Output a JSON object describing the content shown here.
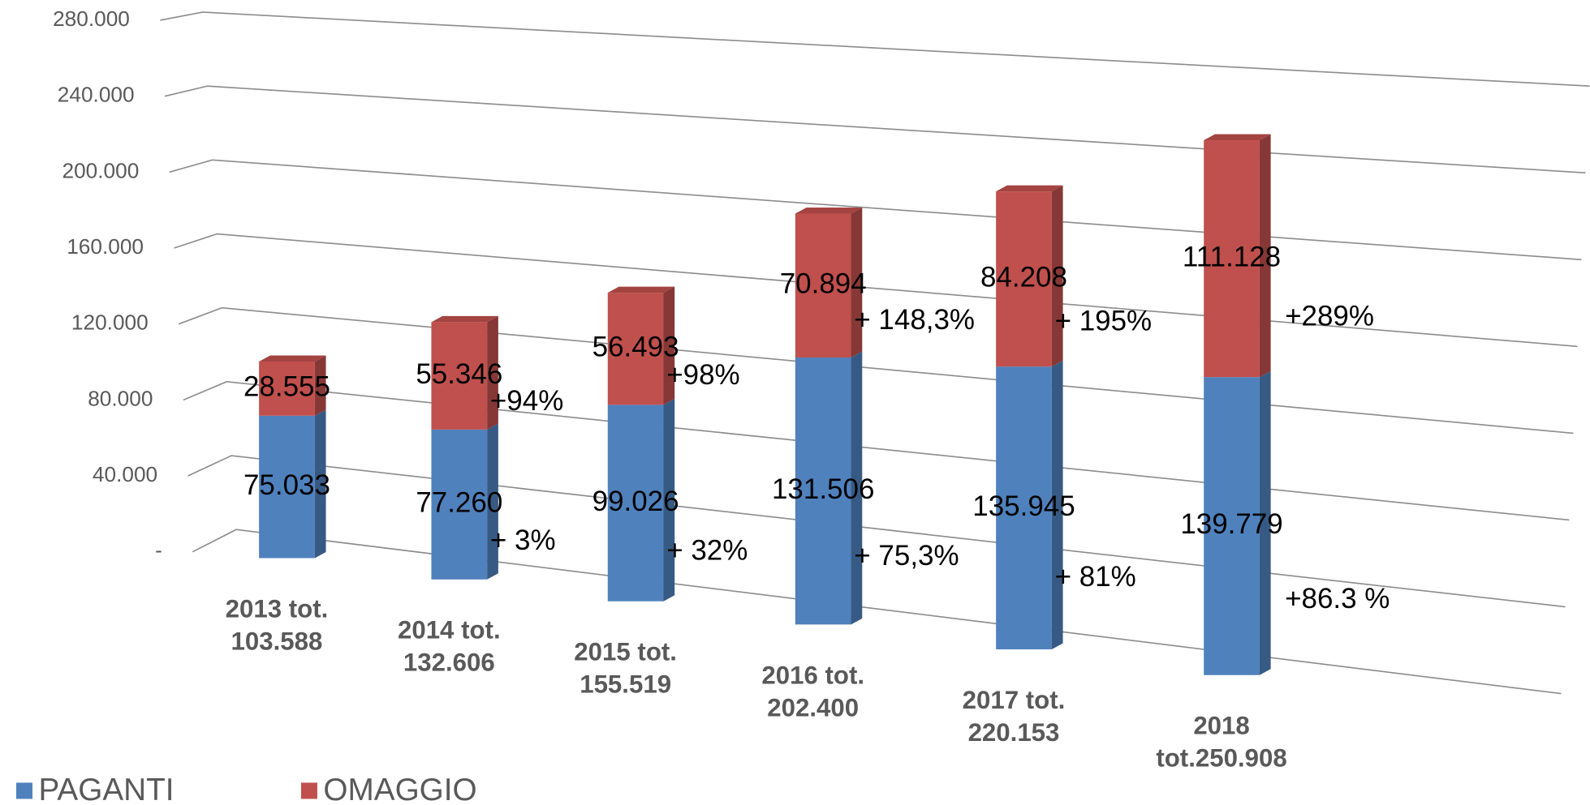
{
  "chart_data": {
    "type": "bar3d_stacked",
    "categories": [
      "2013 tot.\n103.588",
      "2014 tot.\n132.606",
      "2015 tot.\n155.519",
      "2016 tot.\n202.400",
      "2017 tot.\n220.153",
      "2018\ntot.250.908"
    ],
    "series": [
      {
        "name": "PAGANTI",
        "color": "#4F81BD",
        "values": [
          75033,
          77260,
          99026,
          131506,
          135945,
          139779
        ],
        "value_labels": [
          "75.033",
          "77.260",
          "99.026",
          "131.506",
          "135.945",
          "139.779"
        ],
        "change_labels": [
          null,
          "+ 3%",
          "+ 32%",
          "+ 75,3%",
          "+ 81%",
          "+86.3 %"
        ]
      },
      {
        "name": "OMAGGIO",
        "color": "#C0504D",
        "values": [
          28555,
          55346,
          56493,
          70894,
          84208,
          111128
        ],
        "value_labels": [
          "28.555",
          "55.346",
          "56.493",
          "70.894",
          "84.208",
          "111.128"
        ],
        "change_labels": [
          null,
          "+94%",
          "+98%",
          "+ 148,3%",
          "+ 195%",
          "+289%"
        ]
      }
    ],
    "ylim": [
      0,
      280000
    ],
    "yticks": [
      {
        "value": 0,
        "label": "-"
      },
      {
        "value": 40000,
        "label": "40.000"
      },
      {
        "value": 80000,
        "label": "80.000"
      },
      {
        "value": 120000,
        "label": "120.000"
      },
      {
        "value": 160000,
        "label": "160.000"
      },
      {
        "value": 200000,
        "label": "200.000"
      },
      {
        "value": 240000,
        "label": "240.000"
      },
      {
        "value": 280000,
        "label": "280.000"
      }
    ],
    "grid": true,
    "legend": "bottom-left"
  }
}
